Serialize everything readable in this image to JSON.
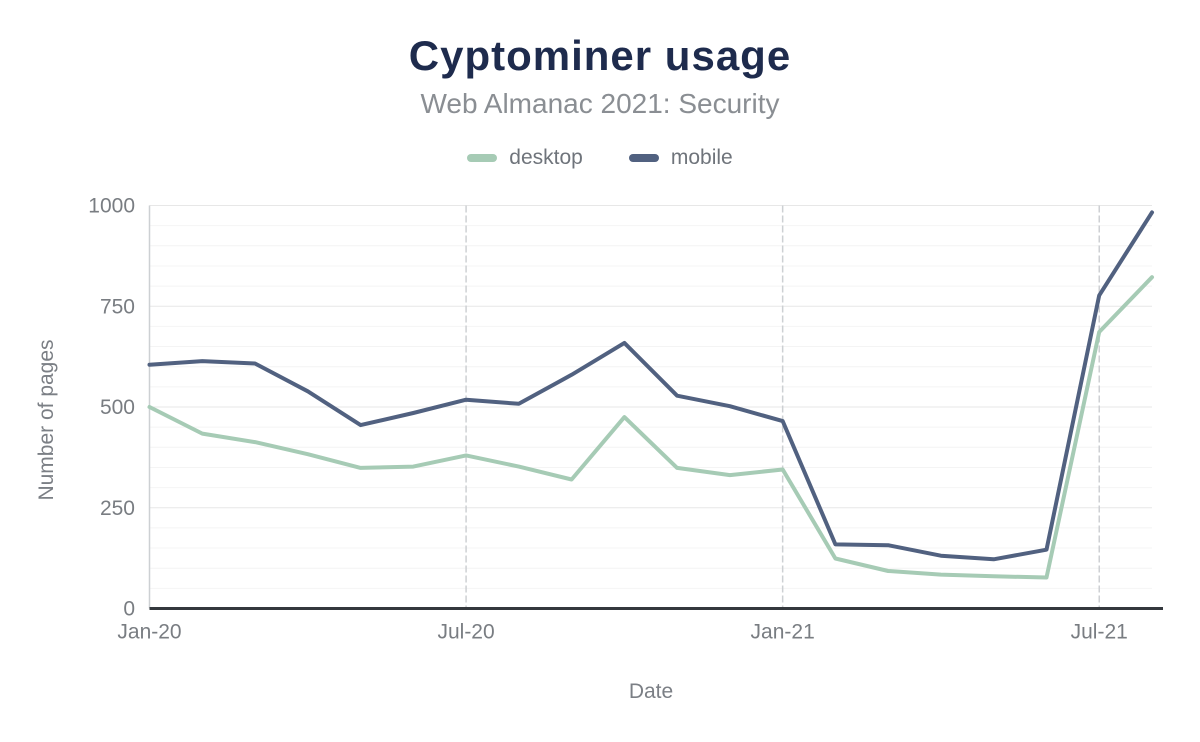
{
  "header": {
    "title": "Cyptominer usage",
    "subtitle": "Web Almanac 2021: Security"
  },
  "chart_data": {
    "type": "line",
    "title": "Cyptominer usage",
    "subtitle": "Web Almanac 2021: Security",
    "xlabel": "Date",
    "ylabel": "Number of pages",
    "ylim": [
      0,
      1000
    ],
    "yticks": [
      0,
      250,
      500,
      750,
      1000
    ],
    "grid": {
      "minor_step": 50,
      "major_step": 250,
      "vertical_gridlines": "dashed"
    },
    "legend_position": "top",
    "x": [
      "Jan-20",
      "Feb-20",
      "Mar-20",
      "Apr-20",
      "May-20",
      "Jun-20",
      "Jul-20",
      "Aug-20",
      "Sep-20",
      "Oct-20",
      "Nov-20",
      "Dec-20",
      "Jan-21",
      "Feb-21",
      "Mar-21",
      "Apr-21",
      "May-21",
      "Jun-21",
      "Jul-21",
      "Aug-21"
    ],
    "xtick_indices": [
      0,
      6,
      12,
      18
    ],
    "xtick_labels": [
      "Jan-20",
      "Jul-20",
      "Jan-21",
      "Jul-21"
    ],
    "series": [
      {
        "name": "desktop",
        "color": "#a6cbb5",
        "values": [
          500,
          434,
          413,
          383,
          349,
          352,
          380,
          352,
          320,
          475,
          349,
          331,
          345,
          124,
          93,
          84,
          80,
          77,
          686,
          822
        ]
      },
      {
        "name": "mobile",
        "color": "#516180",
        "values": [
          605,
          614,
          608,
          539,
          455,
          485,
          518,
          508,
          580,
          659,
          528,
          502,
          465,
          159,
          157,
          131,
          122,
          146,
          777,
          983
        ]
      }
    ]
  },
  "colors": {
    "title": "#1e2b4d",
    "subtitle": "#8a8e93",
    "tick_label": "#797d82",
    "axis_line": "#34383d",
    "gridline_major": "#e7e7e7",
    "gridline_minor": "#f4f4f4",
    "gridline_vertical": "#cdd0d3",
    "background": "#ffffff"
  }
}
